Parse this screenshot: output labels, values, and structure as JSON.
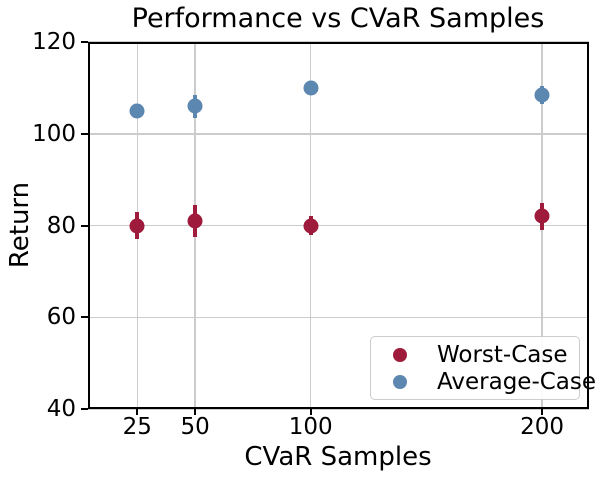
{
  "chart_data": {
    "type": "scatter",
    "title": "Performance vs CVaR Samples",
    "xlabel": "CVaR Samples",
    "ylabel": "Return",
    "x": [
      25,
      50,
      100,
      200
    ],
    "x_tick_labels": [
      "25",
      "50",
      "100",
      "200"
    ],
    "y_ticks": [
      40,
      60,
      80,
      100,
      120
    ],
    "y_tick_labels": [
      "40",
      "60",
      "80",
      "100",
      "120"
    ],
    "xlim": [
      3.7,
      220.3
    ],
    "ylim": [
      40,
      120
    ],
    "grid": true,
    "legend_position": "lower right",
    "series": [
      {
        "name": "Worst-Case",
        "color": "#9E1B3C",
        "values": [
          80,
          81,
          80,
          82
        ],
        "yerr": [
          3,
          3.5,
          2,
          3
        ]
      },
      {
        "name": "Average-Case",
        "color": "#5B87B0",
        "values": [
          105,
          106,
          110,
          108.5
        ],
        "yerr": [
          1,
          2.5,
          1.5,
          2
        ]
      }
    ],
    "colors": {
      "grid": "#cccccc",
      "spine": "#000000",
      "text": "#000000"
    }
  }
}
